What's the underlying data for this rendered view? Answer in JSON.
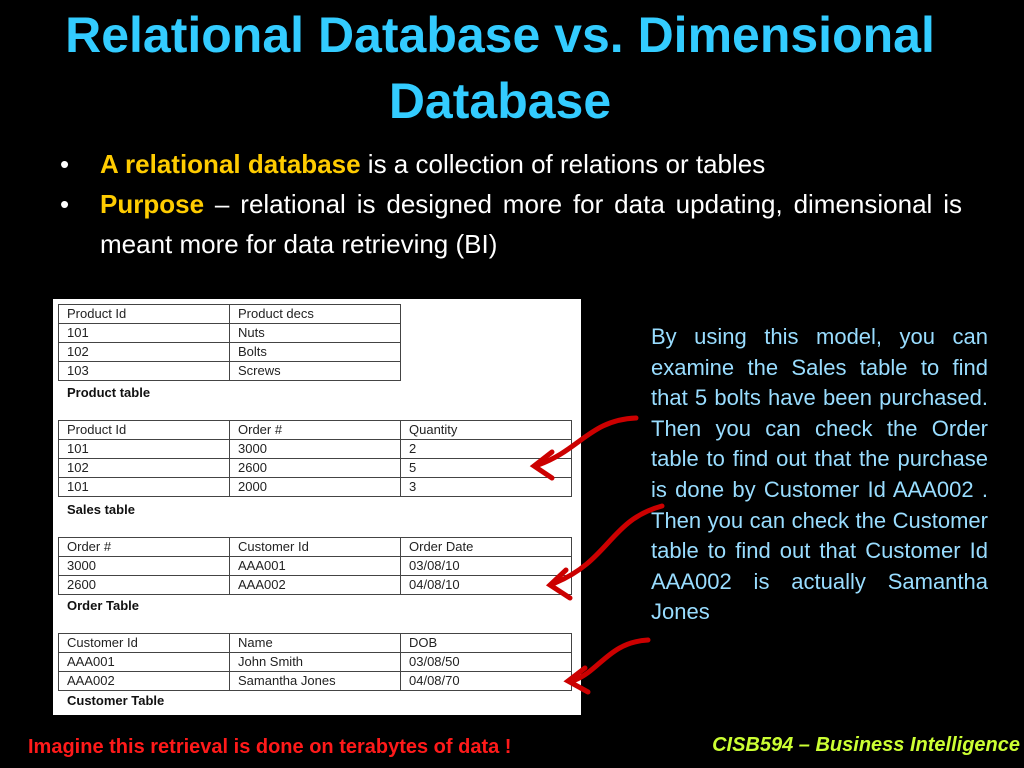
{
  "title": "Relational Database vs. Dimensional Database",
  "bullets": [
    {
      "highlight": "A relational database",
      "text": " is a collection of relations or tables"
    },
    {
      "highlight": "Purpose",
      "text": " – relational is designed more for data updating, dimensional is meant more for data retrieving (BI)"
    }
  ],
  "tables": [
    {
      "caption": "Product table",
      "headers": [
        "Product Id",
        "Product decs"
      ],
      "rows": [
        [
          "101",
          "Nuts"
        ],
        [
          "102",
          "Bolts"
        ],
        [
          "103",
          "Screws"
        ]
      ]
    },
    {
      "caption": "Sales table",
      "headers": [
        "Product Id",
        "Order #",
        "Quantity"
      ],
      "rows": [
        [
          "101",
          "3000",
          "2"
        ],
        [
          "102",
          "2600",
          "5"
        ],
        [
          "101",
          "2000",
          "3"
        ]
      ]
    },
    {
      "caption": "Order Table",
      "headers": [
        "Order #",
        "Customer Id",
        "Order Date"
      ],
      "rows": [
        [
          "3000",
          "AAA001",
          "03/08/10"
        ],
        [
          "2600",
          "AAA002",
          "04/08/10"
        ]
      ]
    },
    {
      "caption": "Customer Table",
      "headers": [
        "Customer Id",
        "Name",
        "DOB"
      ],
      "rows": [
        [
          "AAA001",
          "John Smith",
          "03/08/50"
        ],
        [
          "AAA002",
          "Samantha Jones",
          "04/08/70"
        ]
      ]
    }
  ],
  "explanation": "By using this model, you can examine the Sales table to find that 5 bolts have been purchased. Then you can check the Order table to find out that the purchase is done by Customer Id AAA002 . Then you can check the Customer table to find out that Customer Id AAA002 is actually Samantha Jones",
  "footer_left": "Imagine this retrieval is done on terabytes of data !",
  "footer_right": "CISB594 – Business Intelligence",
  "colors": {
    "title": "#33ccff",
    "highlight": "#ffcc00",
    "explanation": "#99ddff",
    "arrow": "#cc0000",
    "footer_left": "#ff1a1a",
    "footer_right": "#ccff33"
  }
}
